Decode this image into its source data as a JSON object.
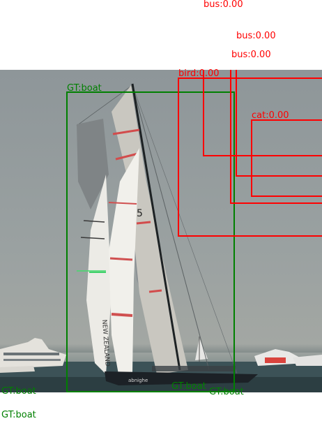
{
  "colors": {
    "ground_truth": "#008000",
    "prediction": "#ff0000"
  },
  "photo": {
    "subject": "sailboat",
    "hull_text": "abnighe",
    "sail_text": "NEW ZEALAND"
  },
  "ground_truth": [
    {
      "label": "GT:boat"
    },
    {
      "label": "GT:boat"
    },
    {
      "label": "GT:boat"
    },
    {
      "label": "GT:boat"
    },
    {
      "label": "GT:boat"
    }
  ],
  "predictions": [
    {
      "label": "bus:0.00"
    },
    {
      "label": "bus:0.00"
    },
    {
      "label": "bus:0.00"
    },
    {
      "label": "bird:0.00"
    },
    {
      "label": "cat:0.00"
    }
  ]
}
